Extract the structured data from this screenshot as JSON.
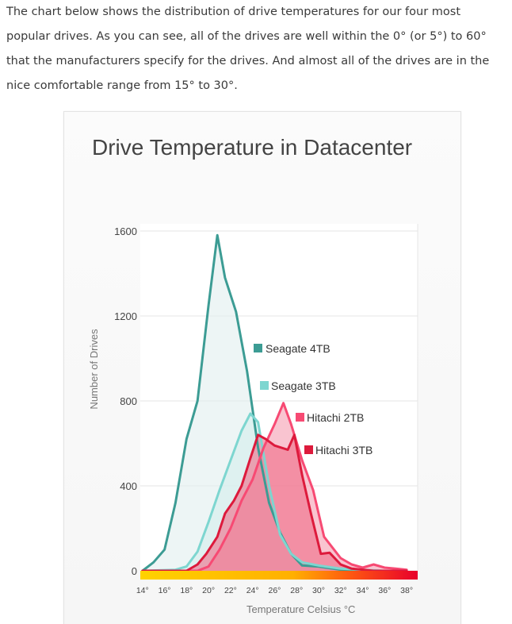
{
  "intro_text": "The chart below shows the distribution of drive temperatures for our four most popular drives. As you can see, all of the drives are well within the 0° (or 5°) to 60° that the manufacturers specify for the drives. And almost all of the drives are in the nice comfortable range from 15° to 30°.",
  "chart_data": {
    "type": "area",
    "title": "Drive Temperature in Datacenter",
    "xlabel": "Temperature Celsius °C",
    "ylabel": "Number of Drives",
    "xlim": [
      13.8,
      39.0
    ],
    "ylim": [
      0,
      1600
    ],
    "yticks": [
      0,
      400,
      800,
      1200,
      1600
    ],
    "ytick_labels": [
      "0",
      "400",
      "800",
      "1200",
      "1600"
    ],
    "xticks": [
      14,
      16,
      18,
      20,
      22,
      24,
      26,
      28,
      30,
      32,
      34,
      36,
      38
    ],
    "xtick_labels": [
      "14°",
      "16°",
      "18°",
      "20°",
      "22°",
      "24°",
      "26°",
      "28°",
      "30°",
      "32°",
      "34°",
      "36°",
      "38°"
    ],
    "grid": true,
    "series": [
      {
        "name": "Seagate 4TB",
        "color": "#3c9c94",
        "fill": "#e1eeee",
        "x": [
          14,
          15,
          16,
          17,
          18,
          19,
          20,
          20.8,
          21.5,
          22.5,
          23.5,
          24.5,
          25.5,
          26.5,
          27.5,
          28.5,
          30,
          32,
          34,
          36,
          38
        ],
        "y": [
          0,
          40,
          100,
          320,
          620,
          800,
          1250,
          1580,
          1380,
          1220,
          940,
          580,
          320,
          180,
          80,
          25,
          20,
          5,
          0,
          0,
          0
        ]
      },
      {
        "name": "Seagate 3TB",
        "color": "#7dd6d0",
        "fill": "#d3eeec",
        "x": [
          14,
          17,
          18,
          19,
          20,
          21,
          22,
          23,
          23.8,
          24.5,
          25.5,
          26.5,
          27.5,
          28.5,
          30,
          32,
          34,
          36,
          38
        ],
        "y": [
          0,
          5,
          20,
          90,
          230,
          380,
          520,
          660,
          740,
          700,
          400,
          170,
          80,
          40,
          25,
          10,
          5,
          0,
          0
        ]
      },
      {
        "name": "Hitachi 2TB",
        "color": "#f74a73",
        "fill": "#f59db0",
        "x": [
          14,
          19,
          20,
          21,
          22,
          23,
          24,
          25,
          26,
          26.8,
          27.5,
          28.5,
          29.5,
          30.5,
          32,
          33,
          34,
          35,
          36,
          37,
          38
        ],
        "y": [
          0,
          0,
          20,
          100,
          200,
          330,
          430,
          580,
          690,
          790,
          690,
          520,
          380,
          160,
          60,
          30,
          15,
          30,
          15,
          10,
          5
        ]
      },
      {
        "name": "Hitachi 3TB",
        "color": "#dd1a3c",
        "fill": "#ef6d87",
        "x": [
          14,
          18,
          19,
          19.8,
          20.8,
          21.5,
          22.3,
          23,
          23.8,
          24.5,
          25.2,
          26,
          27.2,
          27.8,
          28.5,
          29.3,
          30.2,
          31,
          32,
          33,
          35,
          38
        ],
        "y": [
          0,
          0,
          30,
          80,
          160,
          270,
          330,
          400,
          530,
          640,
          620,
          590,
          570,
          640,
          450,
          270,
          80,
          85,
          30,
          10,
          0,
          0
        ]
      }
    ],
    "legend": [
      "Seagate 4TB",
      "Seagate 3TB",
      "Hitachi 2TB",
      "Hitachi 3TB"
    ]
  }
}
